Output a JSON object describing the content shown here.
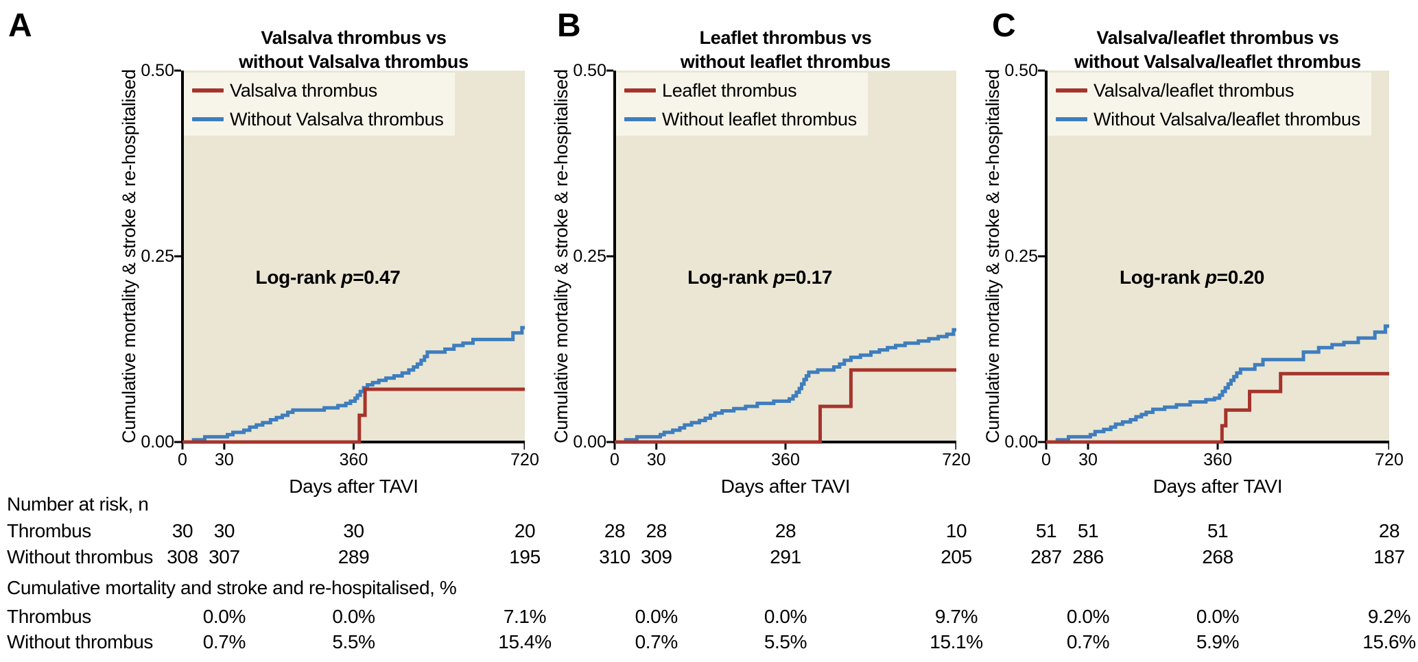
{
  "figure": {
    "background": "#FFFFFF",
    "xlabel": "Days after TAVI",
    "ylabel": "Cumulative mortality & stroke & re-hospitalised",
    "x_tick_labels": [
      "0",
      "30",
      "360",
      "720"
    ],
    "y_tick_labels": [
      "0.50",
      "0.25",
      "0.00"
    ],
    "colors": {
      "thrombus_line": "#A5342C",
      "without_thrombus_line": "#3E7DBE",
      "plot_background": "#EAE6D3",
      "legend_background": "#F7F5EA",
      "axis": "#000000"
    }
  },
  "panels": [
    {
      "letter": "A",
      "title_line1": "Valsalva thrombus vs",
      "title_line2": "without Valsalva thrombus",
      "legend": [
        {
          "label": "Valsalva thrombus",
          "color_key": "thrombus_line"
        },
        {
          "label": "Without Valsalva thrombus",
          "color_key": "without_thrombus_line"
        }
      ],
      "logrank": {
        "prefix": "Log-rank ",
        "p_symbol": "p",
        "value": "=0.47"
      }
    },
    {
      "letter": "B",
      "title_line1": "Leaflet thrombus vs",
      "title_line2": "without leaflet thrombus",
      "legend": [
        {
          "label": "Leaflet thrombus",
          "color_key": "thrombus_line"
        },
        {
          "label": "Without leaflet thrombus",
          "color_key": "without_thrombus_line"
        }
      ],
      "logrank": {
        "prefix": "Log-rank ",
        "p_symbol": "p",
        "value": "=0.17"
      }
    },
    {
      "letter": "C",
      "title_line1": "Valsalva/leaflet thrombus vs",
      "title_line2": "without Valsalva/leaflet thrombus",
      "legend": [
        {
          "label": "Valsalva/leaflet thrombus",
          "color_key": "thrombus_line"
        },
        {
          "label": "Without Valsalva/leaflet thrombus",
          "color_key": "without_thrombus_line"
        }
      ],
      "logrank": {
        "prefix": "Log-rank ",
        "p_symbol": "p",
        "value": "=0.20"
      }
    }
  ],
  "risk_table": {
    "header": "Number at risk, n",
    "rows": [
      {
        "label": "Thrombus",
        "values": [
          [
            "30",
            "30",
            "30",
            "20"
          ],
          [
            "28",
            "28",
            "28",
            "10"
          ],
          [
            "51",
            "51",
            "51",
            "28"
          ]
        ]
      },
      {
        "label": "Without thrombus",
        "values": [
          [
            "308",
            "307",
            "289",
            "195"
          ],
          [
            "310",
            "309",
            "291",
            "205"
          ],
          [
            "287",
            "286",
            "268",
            "187"
          ]
        ]
      }
    ]
  },
  "percent_table": {
    "header": "Cumulative mortality and stroke and re-hospitalised, %",
    "rows": [
      {
        "label": "Thrombus",
        "values": [
          [
            "0.0%",
            "0.0%",
            "7.1%"
          ],
          [
            "0.0%",
            "0.0%",
            "9.7%"
          ],
          [
            "0.0%",
            "0.0%",
            "9.2%"
          ]
        ]
      },
      {
        "label": "Without thrombus",
        "values": [
          [
            "0.7%",
            "5.5%",
            "15.4%"
          ],
          [
            "0.7%",
            "5.5%",
            "15.1%"
          ],
          [
            "0.7%",
            "5.9%",
            "15.6%"
          ]
        ]
      }
    ]
  },
  "chart_data": [
    {
      "type": "line",
      "subtype": "kaplan-meier-cumulative-incidence",
      "panel": "A",
      "title": "Valsalva thrombus vs without Valsalva thrombus",
      "xlabel": "Days after TAVI",
      "ylabel": "Cumulative mortality & stroke & re-hospitalised",
      "xlim": [
        0,
        720
      ],
      "ylim": [
        0,
        0.5
      ],
      "x_ticks": [
        0,
        30,
        360,
        720
      ],
      "y_ticks": [
        0.0,
        0.25,
        0.5
      ],
      "x_scale_note": "compressed axis: day 30 at 12.2% width, day 360 at 50% width",
      "annotation": "Log-rank p=0.47",
      "legend_position": "top-left",
      "grid": false,
      "series": [
        {
          "name": "Valsalva thrombus",
          "color": "#A5342C",
          "steps": [
            [
              372,
              0.036
            ],
            [
              384,
              0.071
            ]
          ],
          "end_day": 720,
          "end_value": 0.071
        },
        {
          "name": "Without Valsalva thrombus",
          "color": "#3E7DBE",
          "steps": [
            [
              8,
              0.003
            ],
            [
              16,
              0.007
            ],
            [
              38,
              0.01
            ],
            [
              52,
              0.013
            ],
            [
              80,
              0.016
            ],
            [
              95,
              0.02
            ],
            [
              112,
              0.023
            ],
            [
              128,
              0.026
            ],
            [
              148,
              0.03
            ],
            [
              163,
              0.033
            ],
            [
              178,
              0.036
            ],
            [
              192,
              0.04
            ],
            [
              205,
              0.043
            ],
            [
              285,
              0.046
            ],
            [
              320,
              0.049
            ],
            [
              340,
              0.052
            ],
            [
              352,
              0.055
            ],
            [
              363,
              0.059
            ],
            [
              368,
              0.063
            ],
            [
              374,
              0.068
            ],
            [
              381,
              0.073
            ],
            [
              389,
              0.077
            ],
            [
              400,
              0.08
            ],
            [
              413,
              0.083
            ],
            [
              428,
              0.086
            ],
            [
              445,
              0.089
            ],
            [
              462,
              0.093
            ],
            [
              476,
              0.097
            ],
            [
              486,
              0.101
            ],
            [
              494,
              0.105
            ],
            [
              502,
              0.11
            ],
            [
              509,
              0.115
            ],
            [
              515,
              0.121
            ],
            [
              552,
              0.125
            ],
            [
              571,
              0.13
            ],
            [
              590,
              0.133
            ],
            [
              611,
              0.138
            ],
            [
              695,
              0.147
            ],
            [
              714,
              0.154
            ]
          ],
          "end_day": 720,
          "end_value": 0.154
        }
      ],
      "number_at_risk": {
        "days": [
          0,
          30,
          360,
          720
        ],
        "Thrombus": [
          30,
          30,
          30,
          20
        ],
        "Without_thrombus": [
          308,
          307,
          289,
          195
        ]
      },
      "cumulative_percent": {
        "days": [
          30,
          360,
          720
        ],
        "Thrombus": [
          "0.0%",
          "0.0%",
          "7.1%"
        ],
        "Without_thrombus": [
          "0.7%",
          "5.5%",
          "15.4%"
        ]
      }
    },
    {
      "type": "line",
      "subtype": "kaplan-meier-cumulative-incidence",
      "panel": "B",
      "title": "Leaflet thrombus vs without leaflet thrombus",
      "xlabel": "Days after TAVI",
      "ylabel": "Cumulative mortality & stroke & re-hospitalised",
      "xlim": [
        0,
        720
      ],
      "ylim": [
        0,
        0.5
      ],
      "x_ticks": [
        0,
        30,
        360,
        720
      ],
      "y_ticks": [
        0.0,
        0.25,
        0.5
      ],
      "x_scale_note": "compressed axis: day 30 at 12.2% width, day 360 at 50% width",
      "annotation": "Log-rank p=0.17",
      "legend_position": "top-left",
      "grid": false,
      "series": [
        {
          "name": "Leaflet thrombus",
          "color": "#A5342C",
          "steps": [
            [
              433,
              0.048
            ],
            [
              498,
              0.097
            ]
          ],
          "end_day": 720,
          "end_value": 0.097
        },
        {
          "name": "Without leaflet thrombus",
          "color": "#3E7DBE",
          "steps": [
            [
              8,
              0.003
            ],
            [
              16,
              0.007
            ],
            [
              40,
              0.01
            ],
            [
              50,
              0.013
            ],
            [
              72,
              0.016
            ],
            [
              90,
              0.019
            ],
            [
              102,
              0.023
            ],
            [
              120,
              0.026
            ],
            [
              140,
              0.029
            ],
            [
              155,
              0.032
            ],
            [
              168,
              0.036
            ],
            [
              180,
              0.039
            ],
            [
              198,
              0.042
            ],
            [
              228,
              0.045
            ],
            [
              258,
              0.048
            ],
            [
              288,
              0.052
            ],
            [
              330,
              0.055
            ],
            [
              368,
              0.058
            ],
            [
              376,
              0.062
            ],
            [
              383,
              0.067
            ],
            [
              389,
              0.072
            ],
            [
              394,
              0.078
            ],
            [
              399,
              0.084
            ],
            [
              404,
              0.089
            ],
            [
              409,
              0.094
            ],
            [
              428,
              0.097
            ],
            [
              462,
              0.101
            ],
            [
              474,
              0.105
            ],
            [
              484,
              0.11
            ],
            [
              498,
              0.114
            ],
            [
              518,
              0.117
            ],
            [
              540,
              0.121
            ],
            [
              558,
              0.124
            ],
            [
              575,
              0.127
            ],
            [
              592,
              0.13
            ],
            [
              612,
              0.133
            ],
            [
              640,
              0.136
            ],
            [
              662,
              0.139
            ],
            [
              682,
              0.142
            ],
            [
              700,
              0.145
            ],
            [
              714,
              0.151
            ]
          ],
          "end_day": 720,
          "end_value": 0.151
        }
      ],
      "number_at_risk": {
        "days": [
          0,
          30,
          360,
          720
        ],
        "Thrombus": [
          28,
          28,
          28,
          10
        ],
        "Without_thrombus": [
          310,
          309,
          291,
          205
        ]
      },
      "cumulative_percent": {
        "days": [
          30,
          360,
          720
        ],
        "Thrombus": [
          "0.0%",
          "0.0%",
          "9.7%"
        ],
        "Without_thrombus": [
          "0.7%",
          "5.5%",
          "15.1%"
        ]
      }
    },
    {
      "type": "line",
      "subtype": "kaplan-meier-cumulative-incidence",
      "panel": "C",
      "title": "Valsalva/leaflet thrombus vs without Valsalva/leaflet thrombus",
      "xlabel": "Days after TAVI",
      "ylabel": "Cumulative mortality & stroke & re-hospitalised",
      "xlim": [
        0,
        720
      ],
      "ylim": [
        0,
        0.5
      ],
      "x_ticks": [
        0,
        30,
        360,
        720
      ],
      "y_ticks": [
        0.0,
        0.25,
        0.5
      ],
      "x_scale_note": "compressed axis: day 30 at 12.2% width, day 360 at 50% width",
      "annotation": "Log-rank p=0.20",
      "legend_position": "top-left",
      "grid": false,
      "series": [
        {
          "name": "Valsalva/leaflet thrombus",
          "color": "#A5342C",
          "steps": [
            [
              369,
              0.022
            ],
            [
              377,
              0.043
            ],
            [
              427,
              0.068
            ],
            [
              492,
              0.092
            ]
          ],
          "end_day": 720,
          "end_value": 0.092
        },
        {
          "name": "Without Valsalva/leaflet thrombus",
          "color": "#3E7DBE",
          "steps": [
            [
              8,
              0.003
            ],
            [
              16,
              0.007
            ],
            [
              36,
              0.01
            ],
            [
              48,
              0.014
            ],
            [
              70,
              0.017
            ],
            [
              88,
              0.02
            ],
            [
              100,
              0.024
            ],
            [
              118,
              0.027
            ],
            [
              138,
              0.03
            ],
            [
              152,
              0.034
            ],
            [
              166,
              0.037
            ],
            [
              178,
              0.04
            ],
            [
              195,
              0.044
            ],
            [
              225,
              0.047
            ],
            [
              255,
              0.05
            ],
            [
              290,
              0.054
            ],
            [
              330,
              0.057
            ],
            [
              352,
              0.059
            ],
            [
              364,
              0.063
            ],
            [
              370,
              0.068
            ],
            [
              376,
              0.073
            ],
            [
              382,
              0.078
            ],
            [
              388,
              0.083
            ],
            [
              394,
              0.088
            ],
            [
              400,
              0.093
            ],
            [
              408,
              0.098
            ],
            [
              438,
              0.104
            ],
            [
              455,
              0.111
            ],
            [
              540,
              0.121
            ],
            [
              572,
              0.127
            ],
            [
              600,
              0.131
            ],
            [
              625,
              0.134
            ],
            [
              655,
              0.14
            ],
            [
              690,
              0.148
            ],
            [
              712,
              0.156
            ]
          ],
          "end_day": 720,
          "end_value": 0.156
        }
      ],
      "number_at_risk": {
        "days": [
          0,
          30,
          360,
          720
        ],
        "Thrombus": [
          51,
          51,
          51,
          28
        ],
        "Without_thrombus": [
          287,
          286,
          268,
          187
        ]
      },
      "cumulative_percent": {
        "days": [
          30,
          360,
          720
        ],
        "Thrombus": [
          "0.0%",
          "0.0%",
          "9.2%"
        ],
        "Without_thrombus": [
          "0.7%",
          "5.9%",
          "15.6%"
        ]
      }
    }
  ]
}
